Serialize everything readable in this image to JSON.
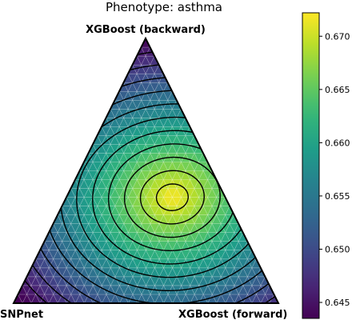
{
  "chart_data": {
    "type": "ternary-heatmap",
    "title": "Phenotype: asthma",
    "vertices": {
      "top": "XGBoost (backward)",
      "left": "SNPnet",
      "right": "XGBoost (forward)"
    },
    "colormap": "viridis",
    "colorbar": {
      "range": [
        0.6435,
        0.6722
      ],
      "ticks": [
        0.645,
        0.65,
        0.655,
        0.66,
        0.665,
        0.67
      ],
      "tick_labels": [
        "0.645",
        "0.650",
        "0.655",
        "0.660",
        "0.665",
        "0.670"
      ]
    },
    "value_min": 0.6435,
    "value_max": 0.6722,
    "optimum": {
      "xgboost_backward": 0.4,
      "snpnet": 0.2,
      "xgboost_forward": 0.4,
      "value": 0.6722
    },
    "mesh_divisions": 30,
    "contours": true
  }
}
